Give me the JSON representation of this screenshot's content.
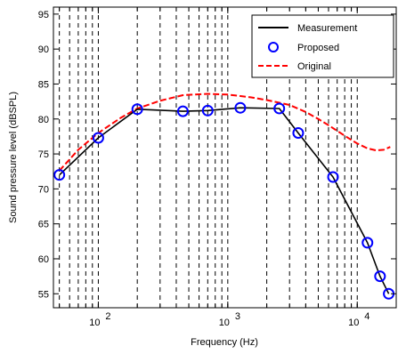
{
  "chart_data": {
    "type": "line",
    "xlabel": "Frequency (Hz)",
    "ylabel": "Sound pressure level (dBSPL)",
    "x_scale": "log",
    "xlim": [
      45,
      20000
    ],
    "ylim": [
      53,
      96
    ],
    "y_ticks": [
      55,
      60,
      65,
      70,
      75,
      80,
      85,
      90,
      95
    ],
    "x_ticks": [
      {
        "value": 100,
        "base": "10",
        "exp": "2"
      },
      {
        "value": 1000,
        "base": "10",
        "exp": "3"
      },
      {
        "value": 10000,
        "base": "10",
        "exp": "4"
      }
    ],
    "vertical_gridlines": [
      50,
      60,
      70,
      80,
      90,
      100,
      200,
      300,
      400,
      500,
      600,
      700,
      800,
      900,
      1000,
      2000,
      3000,
      4000,
      5000,
      6000,
      7000,
      8000,
      9000,
      10000,
      20000
    ],
    "grid": "vertical-dashed",
    "legend_position": "top-right",
    "series": [
      {
        "name": "Measurement",
        "color": "#000000",
        "style": "solid-line",
        "x": [
          50,
          100,
          200,
          450,
          700,
          1250,
          2500,
          3500,
          6500,
          12000,
          15000,
          17500
        ],
        "y": [
          72.0,
          77.3,
          81.4,
          81.1,
          81.2,
          81.6,
          81.5,
          78.0,
          71.7,
          62.3,
          57.5,
          55.0
        ]
      },
      {
        "name": "Proposed",
        "color": "#0000ff",
        "style": "circle-markers",
        "x": [
          50,
          100,
          200,
          450,
          700,
          1250,
          2500,
          3500,
          6500,
          12000,
          15000,
          17500
        ],
        "y": [
          72.0,
          77.3,
          81.4,
          81.1,
          81.2,
          81.6,
          81.5,
          78.0,
          71.7,
          62.3,
          57.5,
          55.0
        ]
      },
      {
        "name": "Original",
        "color": "#ff0000",
        "style": "dashed-line",
        "x": [
          50,
          70,
          100,
          150,
          200,
          300,
          450,
          700,
          1000,
          1500,
          2000,
          3000,
          4000,
          5000,
          6000,
          7000,
          8000,
          9000,
          10000,
          12000,
          14000,
          16000,
          18000
        ],
        "y": [
          72.6,
          75.6,
          78.0,
          80.2,
          81.5,
          82.6,
          83.4,
          83.6,
          83.5,
          83.1,
          82.7,
          82.0,
          81.0,
          80.0,
          79.1,
          78.3,
          77.6,
          77.0,
          76.5,
          75.8,
          75.5,
          75.6,
          76.0
        ]
      }
    ]
  }
}
